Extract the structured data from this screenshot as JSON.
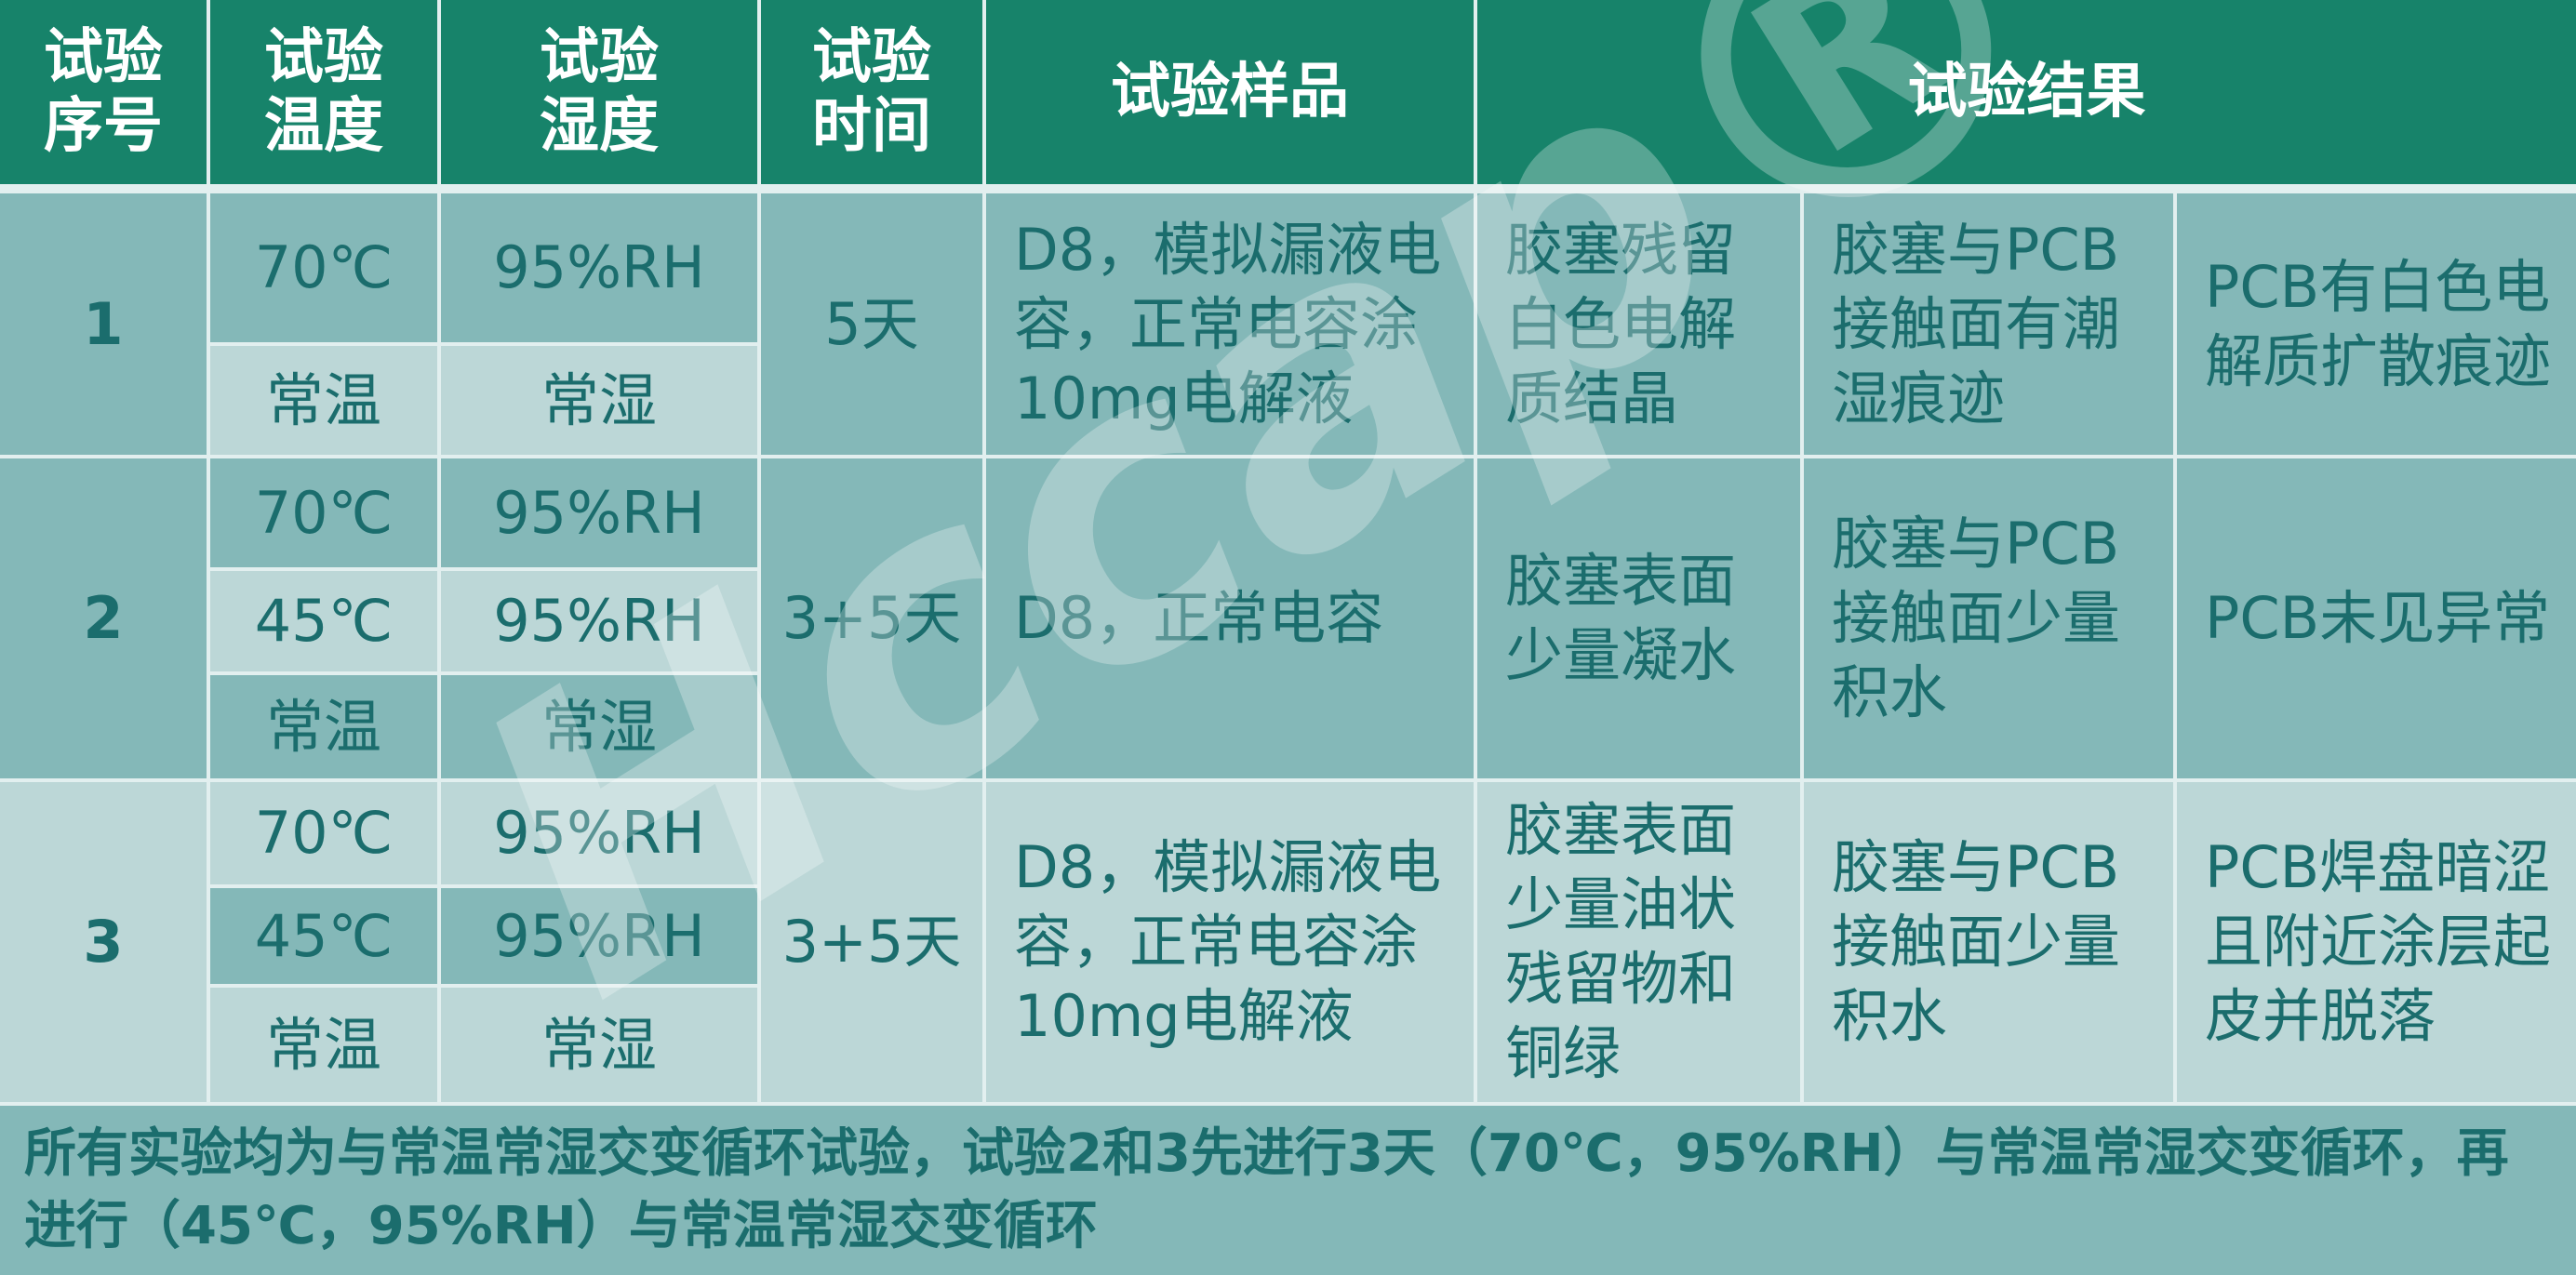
{
  "header": [
    "试验\n序号",
    "试验\n温度",
    "试验\n湿度",
    "试验\n时间",
    "试验样品",
    "试验结果"
  ],
  "rows": [
    {
      "id": "1",
      "conditions": [
        {
          "temp": "70℃",
          "humidity": "95%RH"
        },
        {
          "temp": "常温",
          "humidity": "常湿"
        }
      ],
      "time": "5天",
      "sample": "D8，模拟漏液电容，正常电容涂10mg电解液",
      "results": [
        "胶塞残留白色电解质结晶",
        "胶塞与PCB接触面有潮湿痕迹",
        "PCB有白色电解质扩散痕迹"
      ]
    },
    {
      "id": "2",
      "conditions": [
        {
          "temp": "70℃",
          "humidity": "95%RH"
        },
        {
          "temp": "45℃",
          "humidity": "95%RH"
        },
        {
          "temp": "常温",
          "humidity": "常湿"
        }
      ],
      "time": "3+5天",
      "sample": "D8，正常电容",
      "results": [
        "胶塞表面少量凝水",
        "胶塞与PCB接触面少量积水",
        "PCB未见异常"
      ]
    },
    {
      "id": "3",
      "conditions": [
        {
          "temp": "70℃",
          "humidity": "95%RH"
        },
        {
          "temp": "45℃",
          "humidity": "95%RH"
        },
        {
          "temp": "常温",
          "humidity": "常湿"
        }
      ],
      "time": "3+5天",
      "sample": "D8，模拟漏液电容，正常电容涂10mg电解液",
      "results": [
        "胶塞表面少量油状残留物和铜绿",
        "胶塞与PCB接触面少量积水",
        "PCB焊盘暗涩且附近涂层起皮并脱落"
      ]
    }
  ],
  "footer": "所有实验均为与常温常湿交变循环试验，试验2和3先进行3天（70℃，95%RH）与常温常湿交变循环，再进行（45℃，95%RH）与常温常湿交变循环",
  "watermark": "Hccap®",
  "colors": {
    "header": "#17836a",
    "cell_dark": "#84b8b8",
    "cell_light": "#bcd7d7",
    "text": "#1b6d6d"
  }
}
